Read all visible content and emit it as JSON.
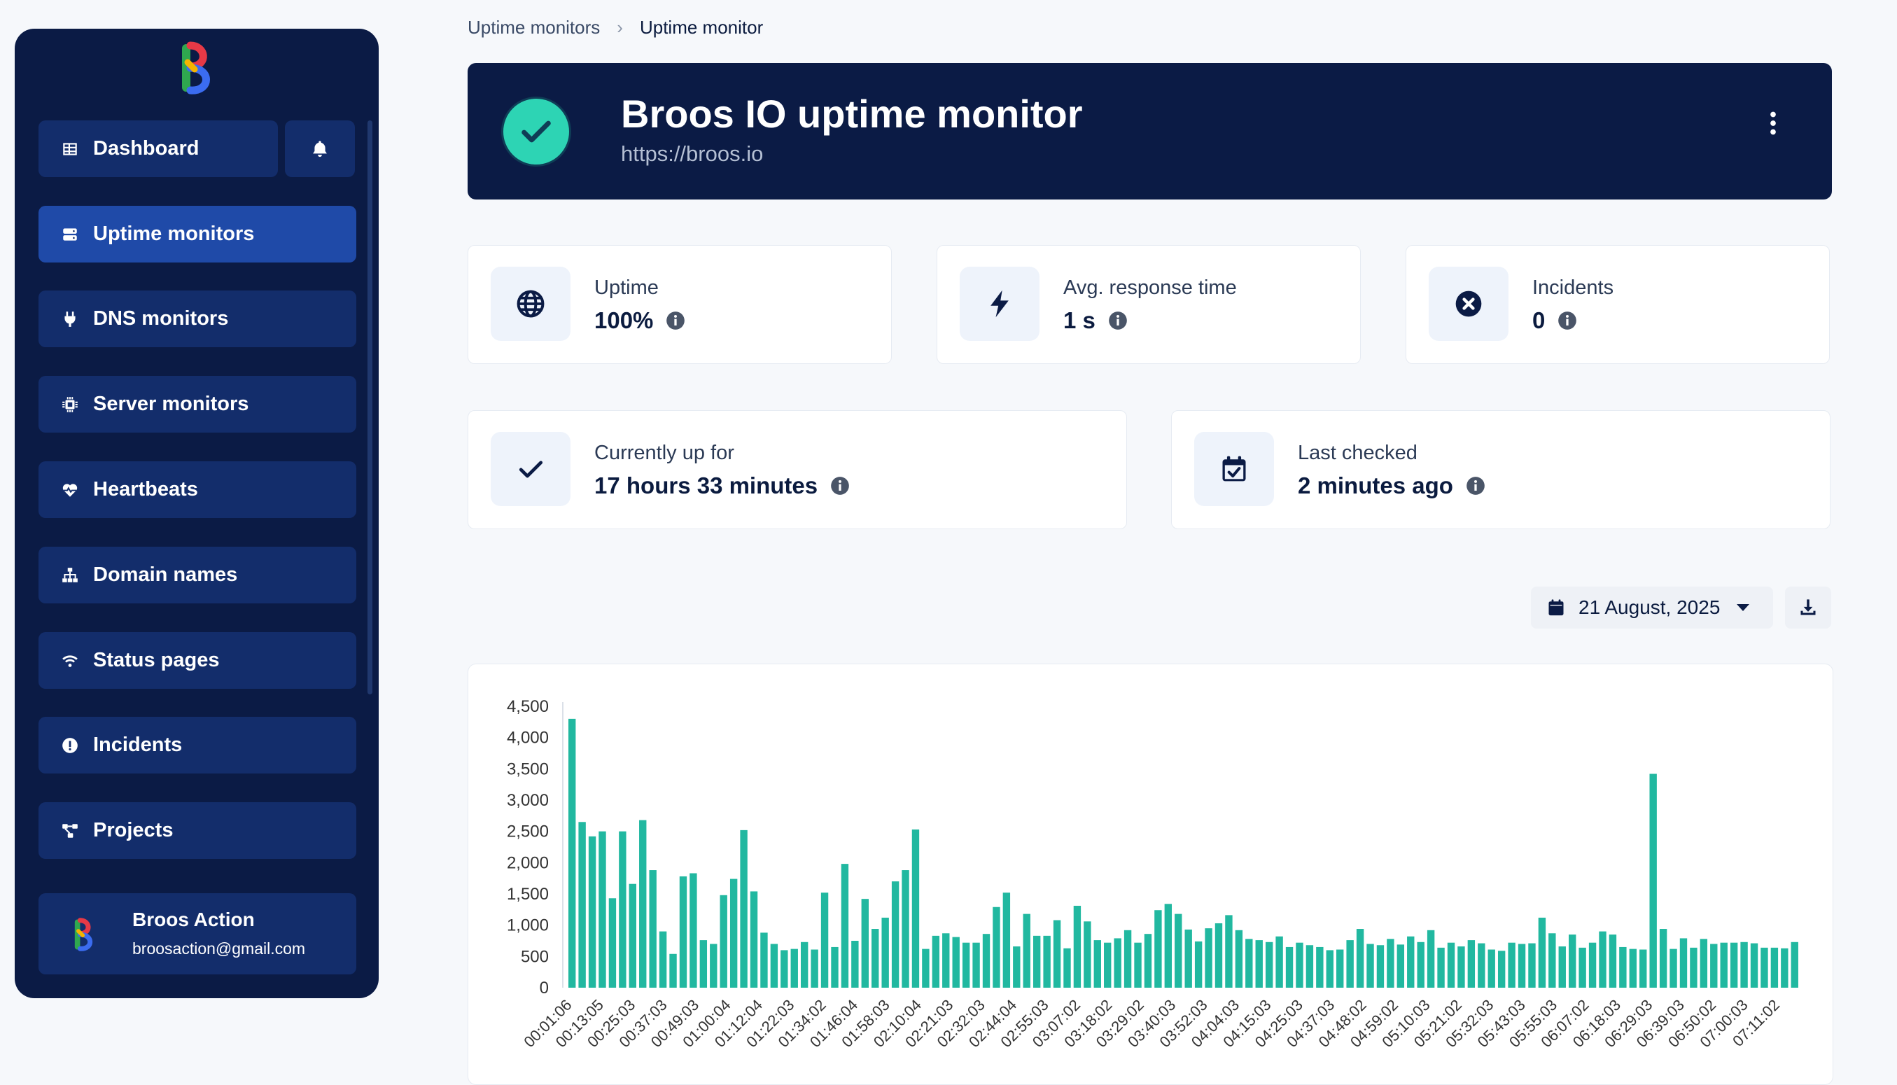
{
  "colors": {
    "sidebar_bg": "#0b1b45",
    "nav_item_bg": "#132d6b",
    "nav_active_bg": "#1f4aa8",
    "accent_teal": "#2dd4b4",
    "bar_color": "#21b8a0"
  },
  "sidebar": {
    "items": [
      {
        "label": "Dashboard",
        "icon": "table-icon",
        "active": false
      },
      {
        "label": "Uptime monitors",
        "icon": "server-icon",
        "active": true
      },
      {
        "label": "DNS monitors",
        "icon": "plug-icon",
        "active": false
      },
      {
        "label": "Server monitors",
        "icon": "chip-icon",
        "active": false
      },
      {
        "label": "Heartbeats",
        "icon": "heart-pulse-icon",
        "active": false
      },
      {
        "label": "Domain names",
        "icon": "sitemap-icon",
        "active": false
      },
      {
        "label": "Status pages",
        "icon": "wifi-icon",
        "active": false
      },
      {
        "label": "Incidents",
        "icon": "exclamation-circle-icon",
        "active": false
      },
      {
        "label": "Projects",
        "icon": "diagram-icon",
        "active": false
      }
    ],
    "user": {
      "name": "Broos Action",
      "email": "broosaction@gmail.com"
    }
  },
  "breadcrumb": {
    "parent": "Uptime monitors",
    "current": "Uptime monitor"
  },
  "header": {
    "title": "Broos IO uptime monitor",
    "url": "https://broos.io",
    "status": "up"
  },
  "stats": [
    {
      "label": "Uptime",
      "value": "100%",
      "icon": "globe-icon"
    },
    {
      "label": "Avg. response time",
      "value": "1 s",
      "icon": "bolt-icon"
    },
    {
      "label": "Incidents",
      "value": "0",
      "icon": "x-circle-icon"
    },
    {
      "label": "Currently up for",
      "value": "17 hours 33 minutes",
      "icon": "check-icon"
    },
    {
      "label": "Last checked",
      "value": "2 minutes ago",
      "icon": "calendar-check-icon"
    }
  ],
  "date_selector": {
    "value": "21 August, 2025"
  },
  "chart_data": {
    "type": "bar",
    "ylim": [
      0,
      4500
    ],
    "yticks": [
      "4,500",
      "4,000",
      "3,500",
      "3,000",
      "2,500",
      "2,000",
      "1,500",
      "1,000",
      "500",
      "0"
    ],
    "xtick_labels": [
      "00:01:06",
      "00:13:05",
      "00:25:03",
      "00:37:03",
      "00:49:03",
      "01:00:04",
      "01:12:04",
      "01:22:03",
      "01:34:02",
      "01:46:04",
      "01:58:03",
      "02:10:04",
      "02:21:03",
      "02:32:03",
      "02:44:04",
      "02:55:03",
      "03:07:02",
      "03:18:02",
      "03:29:02",
      "03:40:03",
      "03:52:03",
      "04:04:03",
      "04:15:03",
      "04:25:03",
      "04:37:03",
      "04:48:02",
      "04:59:02",
      "05:10:03",
      "05:21:02",
      "05:32:03",
      "05:43:03",
      "05:55:03",
      "06:07:02",
      "06:18:03",
      "06:29:03",
      "06:39:03",
      "06:50:02",
      "07:00:03",
      "07:11:02"
    ],
    "values": [
      4300,
      2650,
      2420,
      2500,
      1430,
      2500,
      1660,
      2680,
      1880,
      900,
      540,
      1780,
      1830,
      760,
      700,
      1480,
      1740,
      2520,
      1540,
      880,
      700,
      600,
      620,
      730,
      610,
      1520,
      650,
      1980,
      750,
      1420,
      940,
      1120,
      1700,
      1880,
      2530,
      620,
      830,
      870,
      810,
      720,
      720,
      860,
      1290,
      1520,
      660,
      1180,
      830,
      830,
      1080,
      630,
      1310,
      1060,
      760,
      720,
      790,
      920,
      720,
      860,
      1240,
      1340,
      1180,
      930,
      740,
      950,
      1030,
      1160,
      920,
      780,
      760,
      730,
      820,
      650,
      720,
      680,
      650,
      600,
      610,
      760,
      940,
      700,
      680,
      780,
      690,
      820,
      730,
      920,
      640,
      720,
      660,
      760,
      710,
      610,
      590,
      720,
      700,
      710,
      1120,
      870,
      660,
      850,
      640,
      720,
      900,
      850,
      650,
      620,
      610,
      3420,
      940,
      620,
      790,
      640,
      780,
      700,
      720,
      720,
      730,
      710,
      640,
      640,
      630,
      730
    ]
  }
}
